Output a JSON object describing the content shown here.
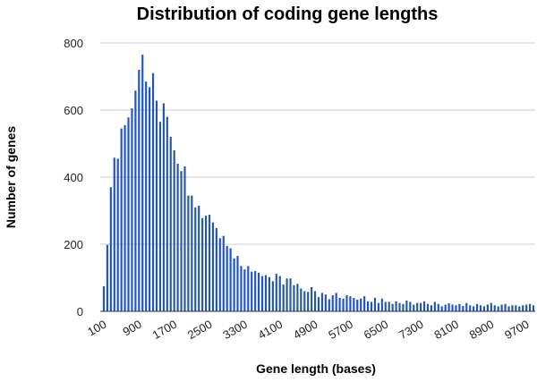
{
  "colors": {
    "bar": "#2255b8",
    "grid": "#cccccc",
    "axis": "#333333",
    "background": "#ffffff"
  },
  "chart_data": {
    "type": "bar",
    "title": "Distribution of coding gene lengths",
    "xlabel": "Gene length (bases)",
    "ylabel": "Number of genes",
    "ylim": [
      0,
      800
    ],
    "y_ticks": [
      0,
      200,
      400,
      600,
      800
    ],
    "x_tick_labels": [
      "100",
      "900",
      "1700",
      "2500",
      "3300",
      "4100",
      "4900",
      "5700",
      "6500",
      "7300",
      "8100",
      "8900",
      "9700"
    ],
    "grid": true,
    "legend": "none",
    "categories": [
      100,
      180,
      260,
      340,
      420,
      500,
      580,
      660,
      740,
      820,
      900,
      980,
      1060,
      1140,
      1220,
      1300,
      1380,
      1460,
      1540,
      1620,
      1700,
      1780,
      1860,
      1940,
      2020,
      2100,
      2180,
      2260,
      2340,
      2420,
      2500,
      2580,
      2660,
      2740,
      2820,
      2900,
      2980,
      3060,
      3140,
      3220,
      3300,
      3380,
      3460,
      3540,
      3620,
      3700,
      3780,
      3860,
      3940,
      4020,
      4100,
      4180,
      4260,
      4340,
      4420,
      4500,
      4580,
      4660,
      4740,
      4820,
      4900,
      4980,
      5060,
      5140,
      5220,
      5300,
      5380,
      5460,
      5540,
      5620,
      5700,
      5780,
      5860,
      5940,
      6020,
      6100,
      6180,
      6260,
      6340,
      6420,
      6500,
      6580,
      6660,
      6740,
      6820,
      6900,
      6980,
      7060,
      7140,
      7220,
      7300,
      7380,
      7460,
      7540,
      7620,
      7700,
      7780,
      7860,
      7940,
      8020,
      8100,
      8180,
      8260,
      8340,
      8420,
      8500,
      8580,
      8660,
      8740,
      8820,
      8900,
      8980,
      9060,
      9140,
      9220,
      9300,
      9380,
      9460,
      9540,
      9620,
      9700,
      9780,
      9860
    ],
    "values": [
      75,
      198,
      370,
      458,
      455,
      545,
      555,
      578,
      605,
      658,
      720,
      765,
      685,
      668,
      710,
      628,
      565,
      620,
      580,
      520,
      480,
      440,
      418,
      432,
      345,
      345,
      310,
      315,
      278,
      285,
      288,
      265,
      248,
      218,
      225,
      195,
      188,
      158,
      165,
      135,
      125,
      135,
      118,
      120,
      115,
      105,
      108,
      102,
      90,
      112,
      105,
      80,
      98,
      98,
      78,
      82,
      68,
      60,
      58,
      72,
      60,
      42,
      55,
      50,
      36,
      48,
      55,
      40,
      38,
      48,
      45,
      40,
      35,
      38,
      45,
      30,
      28,
      40,
      25,
      38,
      28,
      28,
      22,
      30,
      25,
      22,
      32,
      28,
      20,
      25,
      25,
      30,
      22,
      18,
      28,
      22,
      15,
      20,
      24,
      20,
      18,
      22,
      16,
      25,
      18,
      15,
      22,
      18,
      15,
      20,
      25,
      18,
      15,
      20,
      22,
      15,
      18,
      18,
      15,
      18,
      20,
      22,
      18
    ]
  }
}
